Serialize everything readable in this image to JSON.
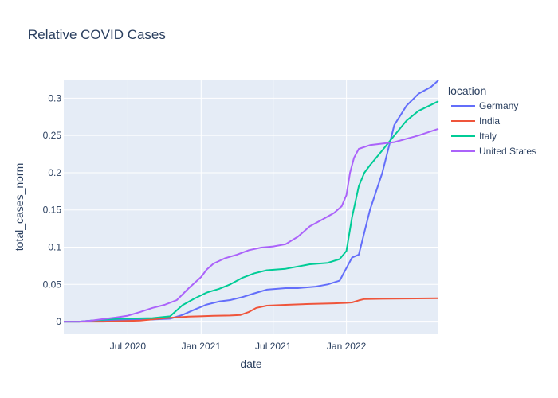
{
  "chart_data": {
    "type": "line",
    "title": "Relative COVID Cases",
    "xlabel": "date",
    "ylabel": "total_cases_norm",
    "x_tick_labels": [
      "Jul 2020",
      "Jan 2021",
      "Jul 2021",
      "Jan 2022"
    ],
    "x_ticks": [
      "2020-07-01",
      "2021-01-01",
      "2021-07-01",
      "2022-01-01"
    ],
    "y_tick_labels": [
      "0",
      "0.05",
      "0.1",
      "0.15",
      "0.2",
      "0.25",
      "0.3"
    ],
    "y_ticks": [
      0,
      0.05,
      0.1,
      0.15,
      0.2,
      0.25,
      0.3
    ],
    "xlim": [
      "2020-01-22",
      "2022-08-20"
    ],
    "ylim": [
      -0.017,
      0.325
    ],
    "grid": true,
    "legend_title": "location",
    "legend_position": "right",
    "background": "#e5ecf6",
    "series": [
      {
        "name": "Germany",
        "color": "#636efa",
        "x": [
          "2020-01-22",
          "2020-03-01",
          "2020-04-01",
          "2020-06-01",
          "2020-09-01",
          "2020-10-15",
          "2020-11-15",
          "2020-12-15",
          "2021-01-15",
          "2021-02-15",
          "2021-03-15",
          "2021-04-15",
          "2021-05-15",
          "2021-06-15",
          "2021-08-01",
          "2021-09-01",
          "2021-10-15",
          "2021-11-15",
          "2021-12-15",
          "2022-01-01",
          "2022-01-15",
          "2022-02-01",
          "2022-02-15",
          "2022-03-01",
          "2022-04-01",
          "2022-05-01",
          "2022-06-01",
          "2022-07-01",
          "2022-08-01",
          "2022-08-20"
        ],
        "y": [
          0,
          0,
          0.0015,
          0.002,
          0.0029,
          0.004,
          0.009,
          0.016,
          0.023,
          0.027,
          0.029,
          0.033,
          0.038,
          0.043,
          0.045,
          0.045,
          0.047,
          0.05,
          0.055,
          0.072,
          0.086,
          0.09,
          0.12,
          0.15,
          0.2,
          0.264,
          0.29,
          0.306,
          0.315,
          0.324
        ]
      },
      {
        "name": "India",
        "color": "#ef553b",
        "x": [
          "2020-01-22",
          "2020-05-01",
          "2020-08-01",
          "2020-10-01",
          "2020-12-01",
          "2021-02-01",
          "2021-03-15",
          "2021-04-10",
          "2021-05-01",
          "2021-05-20",
          "2021-06-15",
          "2021-08-01",
          "2021-10-01",
          "2021-12-01",
          "2022-01-01",
          "2022-01-15",
          "2022-02-01",
          "2022-02-15",
          "2022-04-01",
          "2022-06-01",
          "2022-08-20"
        ],
        "y": [
          0,
          0,
          0.0014,
          0.0046,
          0.0067,
          0.0078,
          0.0082,
          0.009,
          0.013,
          0.0185,
          0.0215,
          0.0225,
          0.0237,
          0.0246,
          0.0252,
          0.0258,
          0.0285,
          0.0303,
          0.0307,
          0.031,
          0.0313
        ]
      },
      {
        "name": "Italy",
        "color": "#00cc96",
        "x": [
          "2020-01-22",
          "2020-03-01",
          "2020-04-01",
          "2020-06-01",
          "2020-09-01",
          "2020-10-15",
          "2020-11-15",
          "2020-12-15",
          "2021-01-15",
          "2021-02-15",
          "2021-03-15",
          "2021-04-15",
          "2021-05-15",
          "2021-06-15",
          "2021-08-01",
          "2021-10-01",
          "2021-11-15",
          "2021-12-15",
          "2022-01-01",
          "2022-01-15",
          "2022-02-01",
          "2022-02-15",
          "2022-03-01",
          "2022-04-01",
          "2022-05-01",
          "2022-06-01",
          "2022-07-01",
          "2022-08-01",
          "2022-08-20"
        ],
        "y": [
          0,
          0,
          0.0015,
          0.0038,
          0.0048,
          0.0072,
          0.022,
          0.031,
          0.039,
          0.044,
          0.05,
          0.059,
          0.065,
          0.069,
          0.071,
          0.077,
          0.079,
          0.084,
          0.095,
          0.14,
          0.182,
          0.2,
          0.21,
          0.23,
          0.25,
          0.27,
          0.283,
          0.291,
          0.296
        ]
      },
      {
        "name": "United States",
        "color": "#ab63fa",
        "x": [
          "2020-01-22",
          "2020-03-01",
          "2020-04-01",
          "2020-05-01",
          "2020-06-01",
          "2020-07-01",
          "2020-08-01",
          "2020-09-01",
          "2020-10-01",
          "2020-11-01",
          "2020-12-01",
          "2021-01-01",
          "2021-01-15",
          "2021-02-01",
          "2021-03-01",
          "2021-04-01",
          "2021-05-01",
          "2021-06-01",
          "2021-07-01",
          "2021-08-01",
          "2021-09-01",
          "2021-10-01",
          "2021-11-01",
          "2021-12-01",
          "2021-12-20",
          "2022-01-01",
          "2022-01-10",
          "2022-01-20",
          "2022-02-01",
          "2022-03-01",
          "2022-05-01",
          "2022-07-01",
          "2022-08-20"
        ],
        "y": [
          0,
          0,
          0.0015,
          0.0035,
          0.0055,
          0.008,
          0.013,
          0.0185,
          0.0225,
          0.029,
          0.045,
          0.06,
          0.07,
          0.078,
          0.085,
          0.09,
          0.096,
          0.0995,
          0.101,
          0.104,
          0.114,
          0.128,
          0.137,
          0.146,
          0.155,
          0.17,
          0.2,
          0.22,
          0.232,
          0.237,
          0.241,
          0.25,
          0.259
        ]
      }
    ]
  }
}
